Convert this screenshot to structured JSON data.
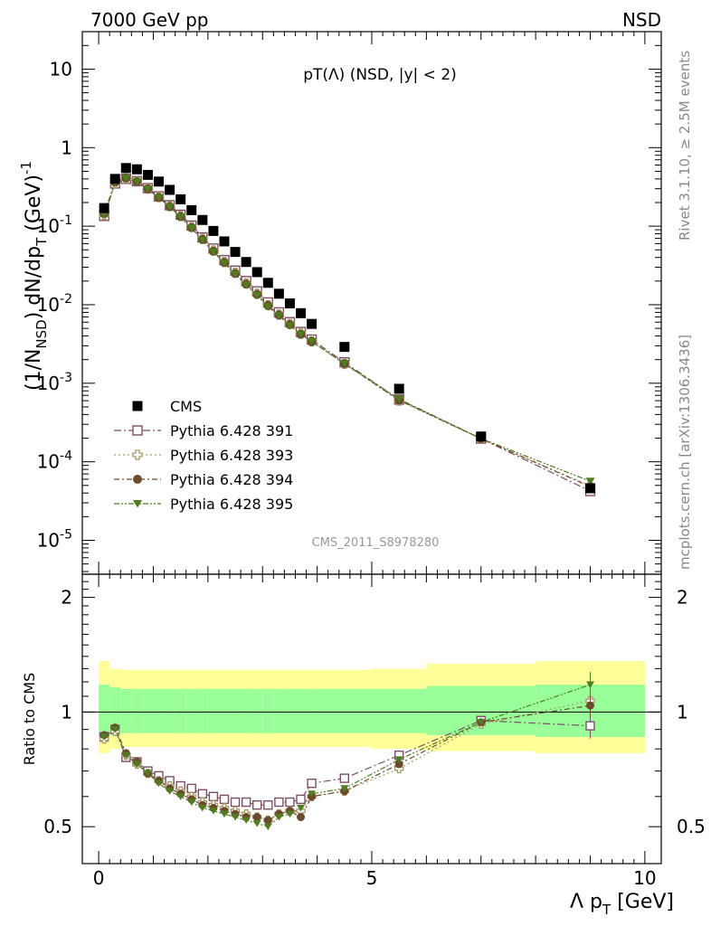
{
  "header": {
    "left": "7000 GeV pp",
    "right": "NSD"
  },
  "side_labels": {
    "rivet": "Rivet 3.1.10, ≥ 2.5M events",
    "mcplots": "mcplots.cern.ch [arXiv:1306.3436]"
  },
  "chart_data": {
    "type": "scatter",
    "title": "pT(Λ) (NSD, |y| < 2)",
    "watermark": "CMS_2011_S8978280",
    "ylabel_main": "(1/N_NSD) dN/dp_T (GeV)^-1",
    "ylabel_main_parts": {
      "pre": "(1/N",
      "sub1": "NSD",
      "mid": ") dN/dp",
      "sub2": "T",
      "post": " (GeV)",
      "sup": "-1"
    },
    "ylabel_ratio": "Ratio to CMS",
    "xlabel": "Λ p_T [GeV]",
    "xlabel_parts": {
      "pre": "Λ p",
      "sub": "T",
      "post": " [GeV]"
    },
    "x_ticks": [
      "0",
      "5",
      "10"
    ],
    "y_ticks_main": [
      {
        "base": "10",
        "exp": "-5",
        "v": 1e-05
      },
      {
        "base": "10",
        "exp": "-4",
        "v": 0.0001
      },
      {
        "base": "10",
        "exp": "-3",
        "v": 0.001
      },
      {
        "base": "10",
        "exp": "-2",
        "v": 0.01
      },
      {
        "base": "10",
        "exp": "-1",
        "v": 0.1
      },
      {
        "base": "1",
        "exp": "",
        "v": 1
      },
      {
        "base": "10",
        "exp": "",
        "v": 10
      }
    ],
    "y_ticks_ratio": [
      "0.5",
      "1",
      "2"
    ],
    "xlim": [
      -0.3,
      10.3
    ],
    "ylim_main": [
      3.7e-06,
      30
    ],
    "ylim_ratio": [
      0.4,
      2.3
    ],
    "legend_position": "bottom-left",
    "x": [
      0.1,
      0.3,
      0.5,
      0.7,
      0.9,
      1.1,
      1.3,
      1.5,
      1.7,
      1.9,
      2.1,
      2.3,
      2.5,
      2.7,
      2.9,
      3.1,
      3.3,
      3.5,
      3.7,
      3.9,
      4.5,
      5.5,
      7.0,
      9.0
    ],
    "series": [
      {
        "name": "CMS",
        "marker": "square-filled",
        "color": "#000000",
        "values": [
          0.17,
          0.4,
          0.55,
          0.53,
          0.45,
          0.37,
          0.29,
          0.22,
          0.16,
          0.12,
          0.087,
          0.064,
          0.047,
          0.035,
          0.026,
          0.019,
          0.0138,
          0.0104,
          0.0078,
          0.0057,
          0.0029,
          0.00085,
          0.00021,
          4.6e-05
        ]
      },
      {
        "name": "Pythia 6.428 391",
        "marker": "square-open",
        "color": "#7b4f66",
        "dash": "8,3,2,3",
        "values": [
          0.135,
          0.35,
          0.4,
          0.375,
          0.305,
          0.24,
          0.185,
          0.14,
          0.102,
          0.072,
          0.052,
          0.037,
          0.0272,
          0.02,
          0.0148,
          0.0107,
          0.008,
          0.006,
          0.0045,
          0.0036,
          0.00185,
          0.00062,
          0.000197,
          4.24e-05
        ],
        "ratio": [
          0.86,
          0.9,
          0.76,
          0.74,
          0.7,
          0.68,
          0.66,
          0.64,
          0.63,
          0.61,
          0.6,
          0.59,
          0.58,
          0.58,
          0.57,
          0.57,
          0.58,
          0.58,
          0.59,
          0.65,
          0.67,
          0.77,
          0.95,
          0.92
        ]
      },
      {
        "name": "Pythia 6.428 393",
        "marker": "cross-open",
        "color": "#a89a68",
        "dash": "2,3",
        "values": [
          0.14,
          0.355,
          0.405,
          0.37,
          0.3,
          0.235,
          0.18,
          0.135,
          0.098,
          0.069,
          0.049,
          0.035,
          0.0256,
          0.0187,
          0.0138,
          0.0099,
          0.0075,
          0.0057,
          0.0043,
          0.0034,
          0.00176,
          0.0006,
          0.000196,
          4.95e-05
        ],
        "ratio": [
          0.85,
          0.89,
          0.77,
          0.73,
          0.69,
          0.66,
          0.64,
          0.62,
          0.6,
          0.58,
          0.57,
          0.56,
          0.55,
          0.54,
          0.53,
          0.52,
          0.54,
          0.55,
          0.55,
          0.6,
          0.62,
          0.71,
          0.93,
          1.07
        ]
      },
      {
        "name": "Pythia 6.428 394",
        "marker": "circle-filled",
        "color": "#6b4a2e",
        "dash": "6,3,2,3",
        "values": [
          0.145,
          0.365,
          0.41,
          0.37,
          0.3,
          0.232,
          0.178,
          0.133,
          0.096,
          0.068,
          0.048,
          0.0345,
          0.025,
          0.0183,
          0.0135,
          0.0098,
          0.0074,
          0.0056,
          0.0042,
          0.0034,
          0.00178,
          0.00061,
          0.000197,
          4.83e-05
        ],
        "ratio": [
          0.87,
          0.91,
          0.78,
          0.74,
          0.69,
          0.66,
          0.63,
          0.61,
          0.59,
          0.57,
          0.56,
          0.55,
          0.54,
          0.53,
          0.53,
          0.52,
          0.54,
          0.55,
          0.53,
          0.6,
          0.62,
          0.73,
          0.94,
          1.04
        ]
      },
      {
        "name": "Pythia 6.428 395",
        "marker": "triangle-down-filled",
        "color": "#4f7d1f",
        "dash": "6,2,2,2,2,2",
        "values": [
          0.14,
          0.36,
          0.405,
          0.368,
          0.298,
          0.23,
          0.176,
          0.131,
          0.094,
          0.066,
          0.047,
          0.0337,
          0.0244,
          0.0178,
          0.0131,
          0.0094,
          0.0072,
          0.0054,
          0.0042,
          0.0034,
          0.00178,
          0.00063,
          0.000198,
          5.65e-05
        ],
        "ratio": [
          0.86,
          0.9,
          0.77,
          0.73,
          0.69,
          0.65,
          0.62,
          0.6,
          0.58,
          0.56,
          0.55,
          0.54,
          0.53,
          0.52,
          0.51,
          0.5,
          0.53,
          0.54,
          0.56,
          0.61,
          0.63,
          0.75,
          0.94,
          1.18
        ]
      }
    ],
    "ratio_bands": {
      "inner_color": "#99ff99",
      "outer_color": "#ffff99",
      "inner_edges": [
        0.0,
        0.2,
        0.4,
        0.6,
        0.8,
        1.0,
        1.2,
        1.4,
        1.6,
        1.8,
        2.0,
        2.2,
        2.4,
        2.6,
        2.8,
        3.0,
        3.2,
        3.4,
        3.6,
        3.8,
        4.0,
        5.0,
        6.0,
        8.0,
        10.0
      ],
      "inner_up": [
        1.18,
        1.16,
        1.15,
        1.15,
        1.15,
        1.15,
        1.15,
        1.15,
        1.15,
        1.15,
        1.15,
        1.15,
        1.15,
        1.15,
        1.15,
        1.15,
        1.15,
        1.15,
        1.15,
        1.15,
        1.15,
        1.15,
        1.17,
        1.18
      ],
      "inner_dn": [
        0.86,
        0.87,
        0.88,
        0.88,
        0.88,
        0.88,
        0.88,
        0.88,
        0.88,
        0.88,
        0.88,
        0.88,
        0.88,
        0.88,
        0.88,
        0.88,
        0.88,
        0.88,
        0.88,
        0.88,
        0.88,
        0.88,
        0.87,
        0.86
      ],
      "outer_up": [
        1.36,
        1.3,
        1.29,
        1.29,
        1.29,
        1.29,
        1.29,
        1.29,
        1.29,
        1.29,
        1.29,
        1.29,
        1.29,
        1.29,
        1.29,
        1.29,
        1.29,
        1.29,
        1.29,
        1.29,
        1.29,
        1.3,
        1.34,
        1.36
      ],
      "outer_dn": [
        0.78,
        0.8,
        0.81,
        0.81,
        0.81,
        0.81,
        0.81,
        0.81,
        0.81,
        0.81,
        0.81,
        0.81,
        0.81,
        0.81,
        0.81,
        0.81,
        0.81,
        0.81,
        0.81,
        0.81,
        0.81,
        0.8,
        0.79,
        0.78
      ]
    }
  }
}
